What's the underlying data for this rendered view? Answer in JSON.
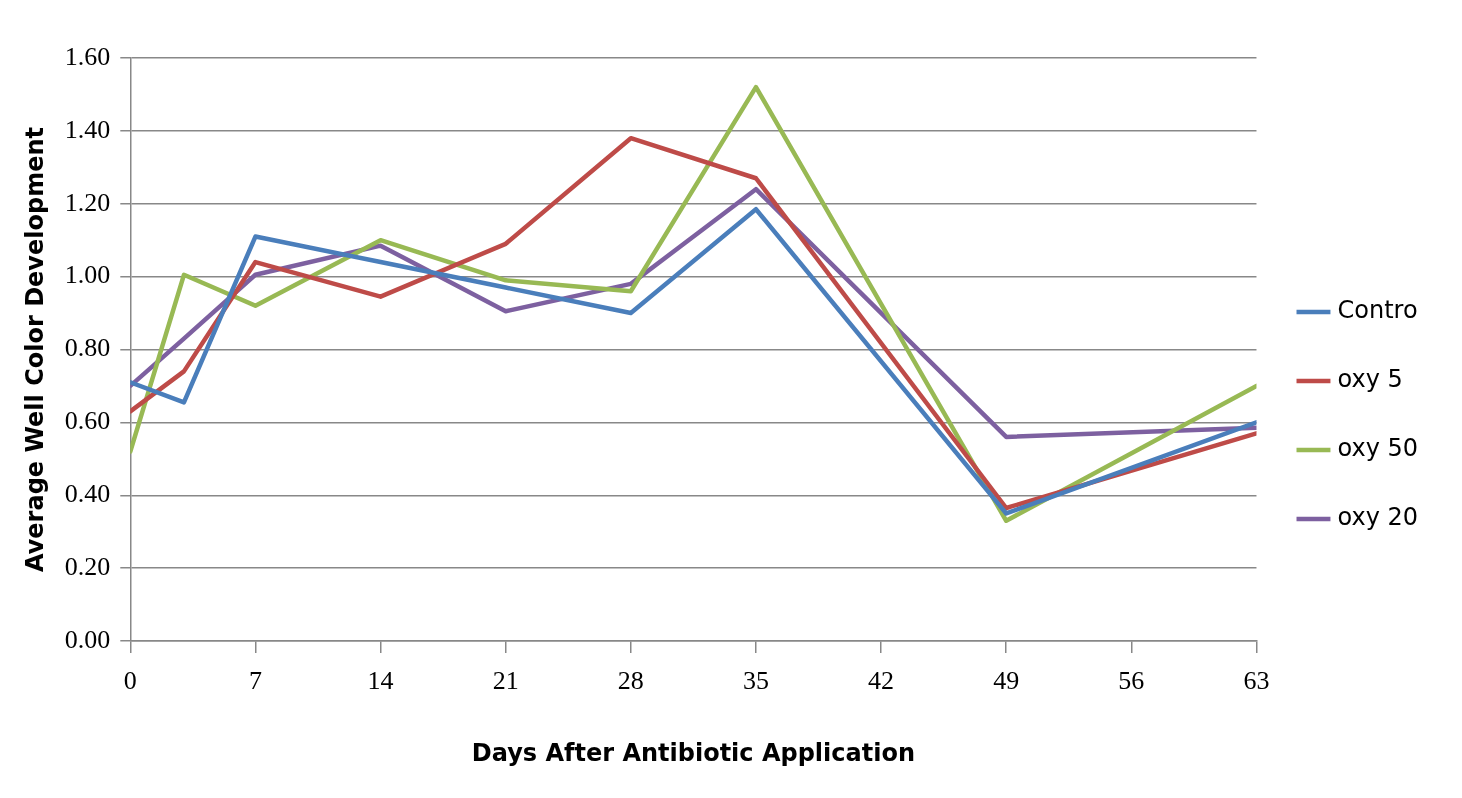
{
  "chart_data": {
    "type": "line",
    "xlabel": "Days After Antibiotic Application",
    "ylabel": "Average Well Color Development",
    "x": [
      0,
      3,
      7,
      14,
      21,
      28,
      35,
      49,
      63
    ],
    "series": [
      {
        "name": "Contro",
        "color": "#4a7ebb",
        "values": [
          0.71,
          0.655,
          1.11,
          1.04,
          0.97,
          0.9,
          1.185,
          0.35,
          0.6
        ]
      },
      {
        "name": "oxy 5",
        "color": "#be4b48",
        "values": [
          0.63,
          0.74,
          1.04,
          0.945,
          1.09,
          1.38,
          1.27,
          0.365,
          0.57
        ]
      },
      {
        "name": "oxy 50",
        "color": "#98b954",
        "values": [
          0.52,
          1.005,
          0.92,
          1.1,
          0.99,
          0.96,
          1.52,
          0.33,
          0.7
        ]
      },
      {
        "name": "oxy 20",
        "color": "#7d60a0",
        "values": [
          0.7,
          0.83,
          1.005,
          1.085,
          0.905,
          0.98,
          1.24,
          0.56,
          0.585
        ]
      }
    ],
    "xlim": [
      0,
      63
    ],
    "xticks": [
      0,
      7,
      14,
      21,
      28,
      35,
      42,
      49,
      56,
      63
    ],
    "ylim": [
      0,
      1.6
    ],
    "yticks": [
      {
        "value": 0,
        "label": "0.00"
      },
      {
        "value": 0.2,
        "label": "0.20"
      },
      {
        "value": 0.4,
        "label": "0.40"
      },
      {
        "value": 0.6,
        "label": "0.60"
      },
      {
        "value": 0.8,
        "label": "0.80"
      },
      {
        "value": 1,
        "label": "1.00"
      },
      {
        "value": 1.2,
        "label": "1.20"
      },
      {
        "value": 1.4,
        "label": "1.40"
      },
      {
        "value": 1.6,
        "label": "1.60"
      }
    ],
    "grid": "y",
    "legend": "right",
    "marker": "none",
    "line_style": "solid"
  }
}
